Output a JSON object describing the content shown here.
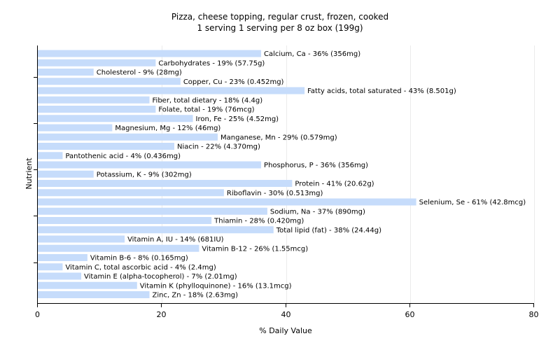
{
  "chart_data": {
    "type": "bar",
    "orientation": "horizontal",
    "title": "Pizza, cheese topping, regular crust, frozen, cooked",
    "subtitle": "1 serving 1 serving per 8 oz box (199g)",
    "xlabel": "% Daily Value",
    "ylabel": "Nutrient",
    "xlim": [
      0,
      80
    ],
    "xticks": [
      0,
      20,
      40,
      60,
      80
    ],
    "grid": "vertical",
    "bar_color": "#c6dcfb",
    "categories": [
      "Calcium, Ca",
      "Carbohydrates",
      "Cholesterol",
      "Copper, Cu",
      "Fatty acids, total saturated",
      "Fiber, total dietary",
      "Folate, total",
      "Iron, Fe",
      "Magnesium, Mg",
      "Manganese, Mn",
      "Niacin",
      "Pantothenic acid",
      "Phosphorus, P",
      "Potassium, K",
      "Protein",
      "Riboflavin",
      "Selenium, Se",
      "Sodium, Na",
      "Thiamin",
      "Total lipid (fat)",
      "Vitamin A, IU",
      "Vitamin B-12",
      "Vitamin B-6",
      "Vitamin C, total ascorbic acid",
      "Vitamin E (alpha-tocopherol)",
      "Vitamin K (phylloquinone)",
      "Zinc, Zn"
    ],
    "values": [
      36,
      19,
      9,
      23,
      43,
      18,
      19,
      25,
      12,
      29,
      22,
      4,
      36,
      9,
      41,
      30,
      61,
      37,
      28,
      38,
      14,
      26,
      8,
      4,
      7,
      16,
      18
    ],
    "labels": [
      "Calcium, Ca - 36% (356mg)",
      "Carbohydrates - 19% (57.75g)",
      "Cholesterol - 9% (28mg)",
      "Copper, Cu - 23% (0.452mg)",
      "Fatty acids, total saturated - 43% (8.501g)",
      "Fiber, total dietary - 18% (4.4g)",
      "Folate, total - 19% (76mcg)",
      "Iron, Fe - 25% (4.52mg)",
      "Magnesium, Mg - 12% (46mg)",
      "Manganese, Mn - 29% (0.579mg)",
      "Niacin - 22% (4.370mg)",
      "Pantothenic acid - 4% (0.436mg)",
      "Phosphorus, P - 36% (356mg)",
      "Potassium, K - 9% (302mg)",
      "Protein - 41% (20.62g)",
      "Riboflavin - 30% (0.513mg)",
      "Selenium, Se - 61% (42.8mcg)",
      "Sodium, Na - 37% (890mg)",
      "Thiamin - 28% (0.420mg)",
      "Total lipid (fat) - 38% (24.44g)",
      "Vitamin A, IU - 14% (681IU)",
      "Vitamin B-12 - 26% (1.55mcg)",
      "Vitamin B-6 - 8% (0.165mg)",
      "Vitamin C, total ascorbic acid - 4% (2.4mg)",
      "Vitamin E (alpha-tocopherol) - 7% (2.01mg)",
      "Vitamin K (phylloquinone) - 16% (13.1mcg)",
      "Zinc, Zn - 18% (2.63mg)"
    ]
  }
}
